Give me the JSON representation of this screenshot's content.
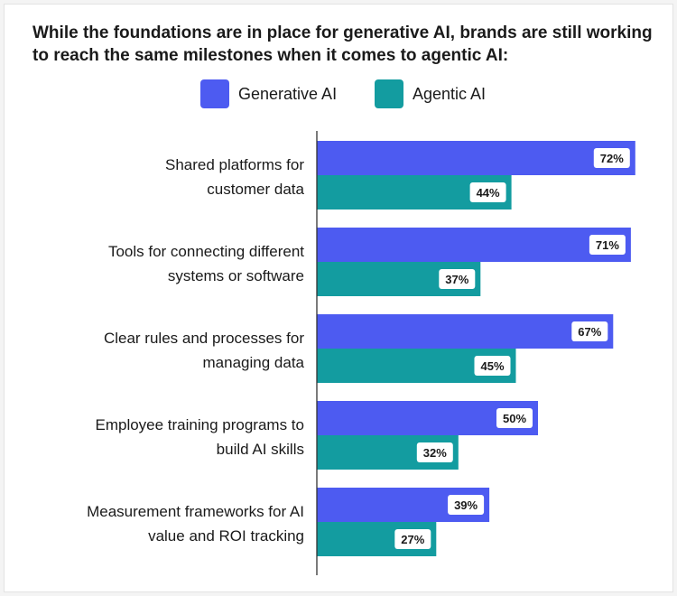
{
  "title_lines": [
    "While the foundations are in place for generative AI, brands are still working",
    "to reach the same milestones when it comes to agentic AI:"
  ],
  "colors": {
    "generative": "#4d5bf1",
    "agentic": "#139ca0"
  },
  "chart_data": {
    "type": "bar",
    "orientation": "horizontal",
    "title": "While the foundations are in place for generative AI, brands are still working to reach the same milestones when it comes to agentic AI:",
    "categories": [
      [
        "Shared platforms for",
        "customer data"
      ],
      [
        "Tools for connecting different",
        "systems or software"
      ],
      [
        "Clear rules and processes for",
        "managing data"
      ],
      [
        "Employee training programs to",
        "build AI skills"
      ],
      [
        "Measurement frameworks for AI",
        "value and ROI tracking"
      ]
    ],
    "series": [
      {
        "name": "Generative AI",
        "values": [
          72,
          71,
          67,
          50,
          39
        ],
        "color": "#4d5bf1"
      },
      {
        "name": "Agentic AI",
        "values": [
          44,
          37,
          45,
          32,
          27
        ],
        "color": "#139ca0"
      }
    ],
    "value_suffix": "%",
    "xlim": [
      0,
      100
    ],
    "grid": false,
    "legend_position": "top-center"
  }
}
